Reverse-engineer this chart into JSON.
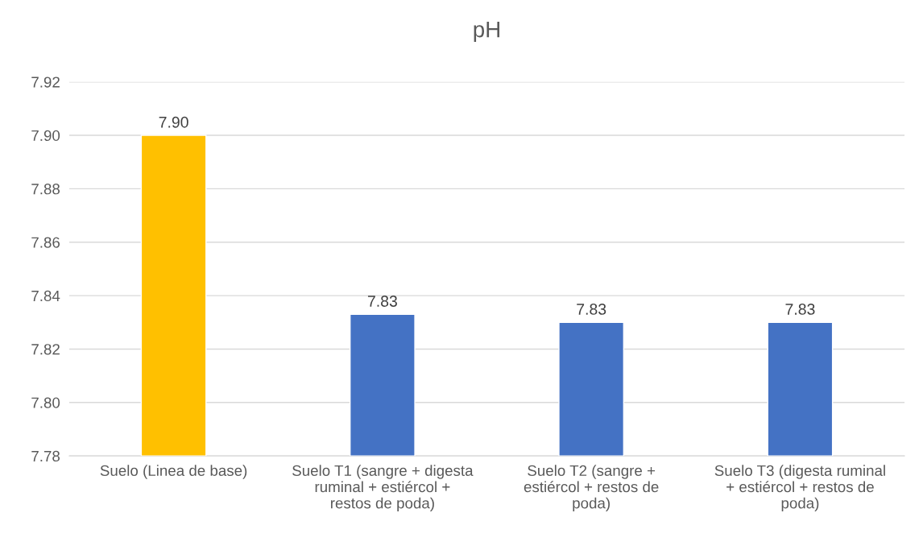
{
  "chart_data": {
    "type": "bar",
    "title": "pH",
    "categories": [
      "Suelo (Linea de base)",
      "Suelo T1 (sangre + digesta\nruminal + estiércol +\nrestos de poda)",
      "Suelo T2 (sangre +\nestiércol + restos de\npoda)",
      "Suelo T3 (digesta ruminal\n+ estiércol + restos de\npoda)"
    ],
    "values": [
      7.9,
      7.833,
      7.83,
      7.83
    ],
    "value_labels": [
      "7.90",
      "7.83",
      "7.83",
      "7.83"
    ],
    "colors": [
      "#ffc000",
      "#4472c4",
      "#4472c4",
      "#4472c4"
    ],
    "ylim": [
      7.78,
      7.92
    ],
    "yticks": [
      {
        "value": 7.78,
        "label": "7.78"
      },
      {
        "value": 7.8,
        "label": "7.80"
      },
      {
        "value": 7.82,
        "label": "7.82"
      },
      {
        "value": 7.84,
        "label": "7.84"
      },
      {
        "value": 7.86,
        "label": "7.86"
      },
      {
        "value": 7.88,
        "label": "7.88"
      },
      {
        "value": 7.9,
        "label": "7.90"
      },
      {
        "value": 7.92,
        "label": "7.92"
      }
    ],
    "grid": "y"
  }
}
